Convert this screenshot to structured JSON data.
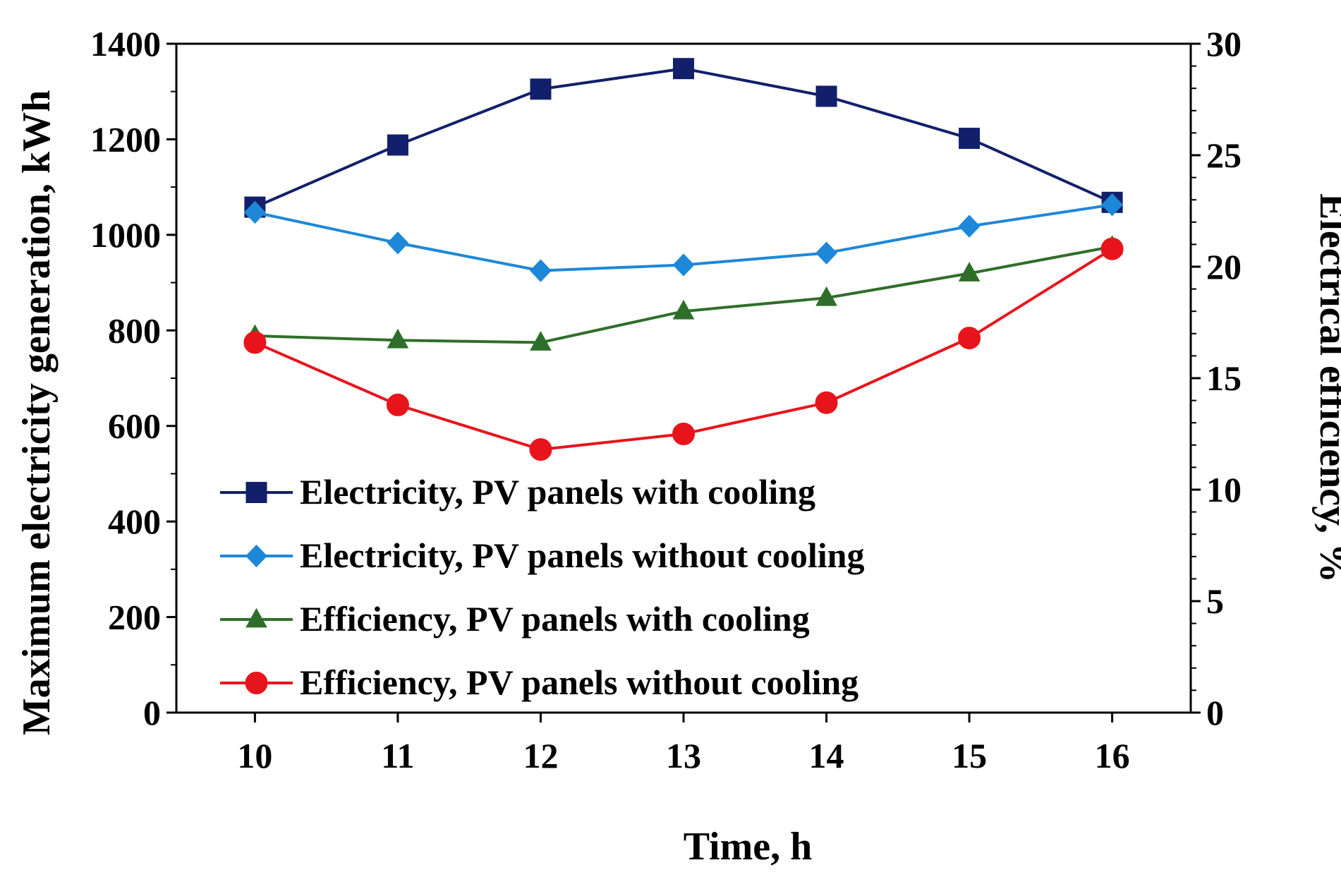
{
  "chart_data": {
    "type": "line",
    "title": "",
    "xlabel": "Time, h",
    "ylabel": "Maximum electricity generation, kWh",
    "y2label": "Electrical efficiency, %",
    "x": [
      10,
      11,
      12,
      13,
      14,
      15,
      16
    ],
    "x_ticks": [
      "10",
      "11",
      "12",
      "13",
      "14",
      "15",
      "16"
    ],
    "xlim": [
      9.45,
      16.55
    ],
    "ylim": [
      0,
      1400
    ],
    "y_ticks": [
      "0",
      "200",
      "400",
      "600",
      "800",
      "1000",
      "1200",
      "1400"
    ],
    "y2lim": [
      0,
      30
    ],
    "y2_ticks": [
      "0",
      "5",
      "10",
      "15",
      "20",
      "25",
      "30"
    ],
    "grid": false,
    "legend_position": "lower-left (inside plot)",
    "series": [
      {
        "name": "Electricity, PV panels with cooling",
        "axis": "left",
        "marker": "square",
        "color": "#12206b",
        "values": [
          1058,
          1188,
          1305,
          1348,
          1290,
          1202,
          1068
        ]
      },
      {
        "name": "Electricity, PV panels without cooling",
        "axis": "left",
        "marker": "diamond",
        "color": "#1e88d8",
        "values": [
          1047,
          983,
          925,
          937,
          962,
          1018,
          1063
        ]
      },
      {
        "name": "Efficiency, PV panels with cooling",
        "axis": "right",
        "marker": "triangle",
        "color": "#2f6e2a",
        "values": [
          16.9,
          16.7,
          16.6,
          18.0,
          18.6,
          19.7,
          20.9
        ]
      },
      {
        "name": "Efficiency, PV panels without cooling",
        "axis": "right",
        "marker": "circle",
        "color": "#e8141c",
        "values": [
          16.6,
          13.8,
          11.8,
          12.5,
          13.9,
          16.8,
          20.8
        ]
      }
    ]
  }
}
